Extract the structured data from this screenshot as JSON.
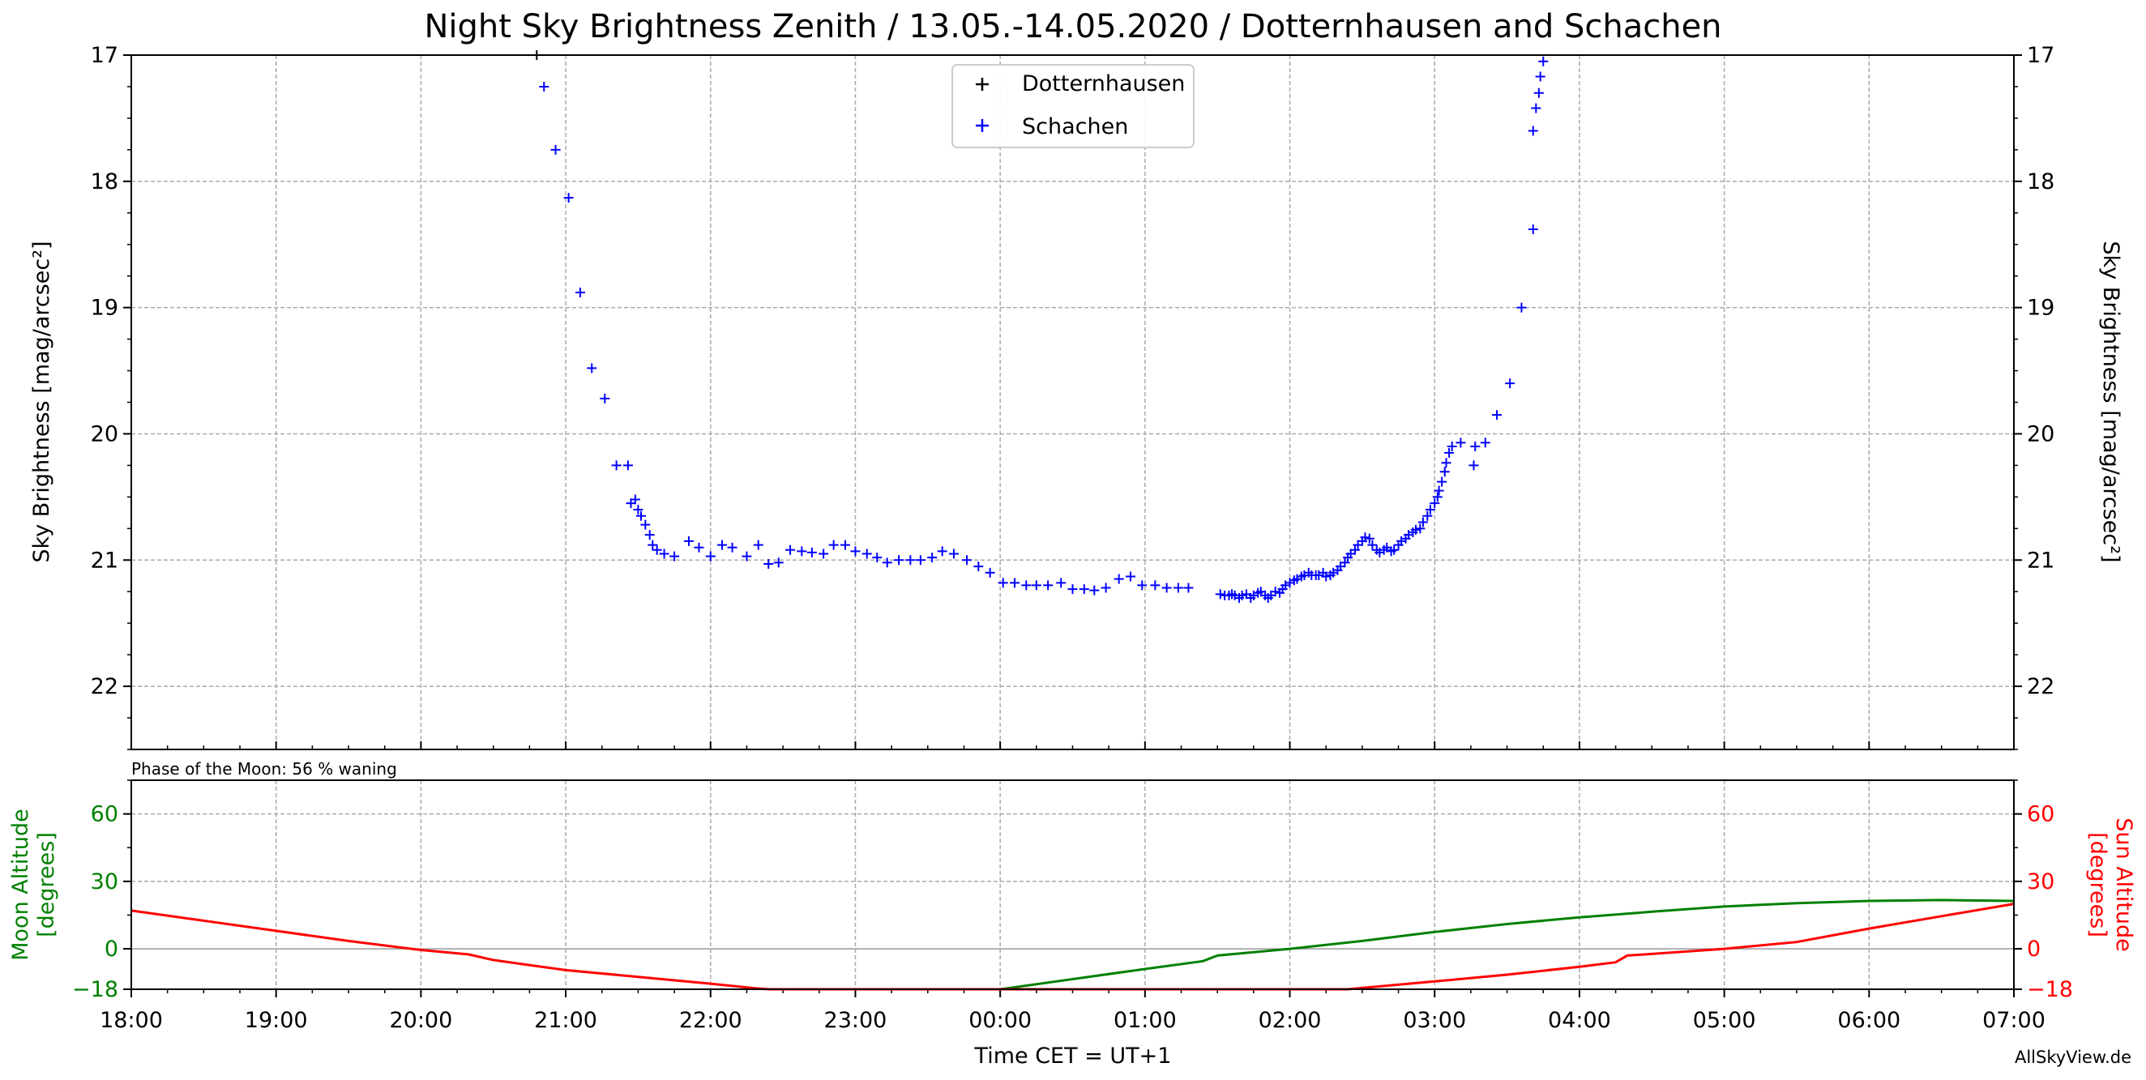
{
  "chart_data": [
    {
      "type": "scatter",
      "title": "Night Sky Brightness Zenith / 13.05.-14.05.2020 / Dotternhausen and Schachen",
      "ylabel": "Sky Brightness [mag/arcsec²]",
      "ylabel_right": "Sky Brightness [mag/arcsec²]",
      "y_inverted": true,
      "ylim": [
        17,
        22.5
      ],
      "yticks": [
        17,
        18,
        19,
        20,
        21,
        22
      ],
      "grid": true,
      "legend_position": "top-center",
      "series": [
        {
          "name": "Dotternhausen",
          "color": "#000000",
          "marker": "+",
          "points": [
            [
              20.8,
              17.0
            ]
          ]
        },
        {
          "name": "Schachen",
          "color": "#0000ff",
          "marker": "+",
          "points": [
            [
              20.85,
              17.25
            ],
            [
              20.93,
              17.75
            ],
            [
              21.02,
              18.13
            ],
            [
              21.1,
              18.88
            ],
            [
              21.18,
              19.48
            ],
            [
              21.27,
              19.72
            ],
            [
              21.35,
              20.25
            ],
            [
              21.43,
              20.25
            ],
            [
              21.45,
              20.55
            ],
            [
              21.48,
              20.52
            ],
            [
              21.5,
              20.6
            ],
            [
              21.52,
              20.65
            ],
            [
              21.55,
              20.72
            ],
            [
              21.58,
              20.8
            ],
            [
              21.6,
              20.88
            ],
            [
              21.63,
              20.92
            ],
            [
              21.68,
              20.95
            ],
            [
              21.75,
              20.97
            ],
            [
              21.85,
              20.85
            ],
            [
              21.92,
              20.9
            ],
            [
              22.0,
              20.97
            ],
            [
              22.08,
              20.88
            ],
            [
              22.15,
              20.9
            ],
            [
              22.25,
              20.97
            ],
            [
              22.33,
              20.88
            ],
            [
              22.4,
              21.03
            ],
            [
              22.47,
              21.02
            ],
            [
              22.55,
              20.92
            ],
            [
              22.63,
              20.93
            ],
            [
              22.7,
              20.94
            ],
            [
              22.78,
              20.95
            ],
            [
              22.85,
              20.88
            ],
            [
              22.93,
              20.88
            ],
            [
              23.0,
              20.93
            ],
            [
              23.08,
              20.95
            ],
            [
              23.15,
              20.98
            ],
            [
              23.22,
              21.02
            ],
            [
              23.3,
              21.0
            ],
            [
              23.38,
              21.0
            ],
            [
              23.45,
              21.0
            ],
            [
              23.53,
              20.98
            ],
            [
              23.6,
              20.93
            ],
            [
              23.68,
              20.95
            ],
            [
              23.77,
              21.0
            ],
            [
              23.85,
              21.05
            ],
            [
              23.93,
              21.1
            ],
            [
              24.02,
              21.18
            ],
            [
              24.1,
              21.18
            ],
            [
              24.18,
              21.2
            ],
            [
              24.25,
              21.2
            ],
            [
              24.33,
              21.2
            ],
            [
              24.42,
              21.18
            ],
            [
              24.5,
              21.23
            ],
            [
              24.58,
              21.23
            ],
            [
              24.65,
              21.24
            ],
            [
              24.73,
              21.22
            ],
            [
              24.82,
              21.15
            ],
            [
              24.9,
              21.13
            ],
            [
              24.98,
              21.2
            ],
            [
              25.07,
              21.2
            ],
            [
              25.15,
              21.22
            ],
            [
              25.23,
              21.22
            ],
            [
              25.3,
              21.22
            ],
            [
              25.52,
              21.27
            ],
            [
              25.55,
              21.28
            ],
            [
              25.58,
              21.28
            ],
            [
              25.6,
              21.27
            ],
            [
              25.62,
              21.28
            ],
            [
              25.65,
              21.3
            ],
            [
              25.67,
              21.28
            ],
            [
              25.7,
              21.27
            ],
            [
              25.73,
              21.3
            ],
            [
              25.75,
              21.28
            ],
            [
              25.78,
              21.26
            ],
            [
              25.8,
              21.25
            ],
            [
              25.83,
              21.28
            ],
            [
              25.85,
              21.3
            ],
            [
              25.87,
              21.28
            ],
            [
              25.9,
              21.25
            ],
            [
              25.93,
              21.26
            ],
            [
              25.95,
              21.23
            ],
            [
              25.97,
              21.2
            ],
            [
              26.0,
              21.18
            ],
            [
              26.03,
              21.16
            ],
            [
              26.05,
              21.15
            ],
            [
              26.08,
              21.13
            ],
            [
              26.1,
              21.12
            ],
            [
              26.13,
              21.1
            ],
            [
              26.15,
              21.12
            ],
            [
              26.18,
              21.12
            ],
            [
              26.2,
              21.12
            ],
            [
              26.23,
              21.1
            ],
            [
              26.25,
              21.13
            ],
            [
              26.28,
              21.12
            ],
            [
              26.3,
              21.1
            ],
            [
              26.33,
              21.08
            ],
            [
              26.35,
              21.05
            ],
            [
              26.38,
              21.02
            ],
            [
              26.4,
              20.98
            ],
            [
              26.42,
              20.95
            ],
            [
              26.45,
              20.92
            ],
            [
              26.47,
              20.88
            ],
            [
              26.5,
              20.85
            ],
            [
              26.52,
              20.82
            ],
            [
              26.55,
              20.83
            ],
            [
              26.57,
              20.88
            ],
            [
              26.6,
              20.92
            ],
            [
              26.62,
              20.94
            ],
            [
              26.65,
              20.92
            ],
            [
              26.67,
              20.9
            ],
            [
              26.7,
              20.93
            ],
            [
              26.72,
              20.92
            ],
            [
              26.75,
              20.88
            ],
            [
              26.77,
              20.85
            ],
            [
              26.8,
              20.83
            ],
            [
              26.82,
              20.8
            ],
            [
              26.85,
              20.78
            ],
            [
              26.87,
              20.76
            ],
            [
              26.9,
              20.75
            ],
            [
              26.92,
              20.7
            ],
            [
              26.95,
              20.65
            ],
            [
              26.97,
              20.6
            ],
            [
              27.0,
              20.55
            ],
            [
              27.02,
              20.5
            ],
            [
              27.03,
              20.45
            ],
            [
              27.05,
              20.38
            ],
            [
              27.07,
              20.3
            ],
            [
              27.08,
              20.23
            ],
            [
              27.1,
              20.15
            ],
            [
              27.12,
              20.1
            ],
            [
              27.18,
              20.07
            ],
            [
              27.27,
              20.25
            ],
            [
              27.28,
              20.1
            ],
            [
              27.35,
              20.07
            ],
            [
              27.43,
              19.85
            ],
            [
              27.52,
              19.6
            ],
            [
              27.6,
              19.0
            ],
            [
              27.68,
              18.38
            ],
            [
              27.68,
              17.6
            ],
            [
              27.7,
              17.42
            ],
            [
              27.72,
              17.3
            ],
            [
              27.73,
              17.17
            ],
            [
              27.75,
              17.05
            ]
          ]
        }
      ]
    },
    {
      "type": "line",
      "annotation": "Phase of the Moon: 56 % waning",
      "xlabel": "Time CET = UT+1",
      "xticklabels": [
        "18:00",
        "19:00",
        "20:00",
        "21:00",
        "22:00",
        "23:00",
        "00:00",
        "01:00",
        "02:00",
        "03:00",
        "04:00",
        "05:00",
        "06:00",
        "07:00"
      ],
      "xlim": [
        18,
        31
      ],
      "ylabel_left": "Moon Altitude [degrees]",
      "ylabel_right": "Sun Altitude [degrees]",
      "ylim": [
        -18,
        75
      ],
      "yticks": [
        -18,
        0,
        30,
        60
      ],
      "grid": true,
      "series": [
        {
          "name": "Moon Altitude",
          "color": "#008000",
          "points": [
            [
              24.0,
              -18
            ],
            [
              24.5,
              -13.5
            ],
            [
              25.0,
              -9
            ],
            [
              25.4,
              -5.5
            ],
            [
              25.5,
              -3
            ],
            [
              26.0,
              0
            ],
            [
              26.5,
              3.5
            ],
            [
              27.0,
              7.5
            ],
            [
              27.5,
              11
            ],
            [
              28.0,
              14
            ],
            [
              28.5,
              16.5
            ],
            [
              29.0,
              18.8
            ],
            [
              29.5,
              20.3
            ],
            [
              30.0,
              21.3
            ],
            [
              30.5,
              21.7
            ],
            [
              31.0,
              21.3
            ]
          ]
        },
        {
          "name": "Sun Altitude",
          "color": "#ff0000",
          "points": [
            [
              18.0,
              17
            ],
            [
              18.5,
              12.5
            ],
            [
              19.0,
              8
            ],
            [
              19.5,
              3.5
            ],
            [
              20.0,
              -0.5
            ],
            [
              20.33,
              -2.5
            ],
            [
              20.5,
              -5
            ],
            [
              21.0,
              -9.5
            ],
            [
              21.5,
              -12.5
            ],
            [
              22.0,
              -15.5
            ],
            [
              22.3,
              -17.5
            ],
            [
              22.4,
              -18
            ],
            [
              26.4,
              -18
            ],
            [
              27.0,
              -14.5
            ],
            [
              27.5,
              -11.5
            ],
            [
              28.0,
              -8
            ],
            [
              28.25,
              -6
            ],
            [
              28.33,
              -3
            ],
            [
              28.5,
              -2.3
            ],
            [
              29.0,
              0
            ],
            [
              29.5,
              3
            ],
            [
              30.0,
              9
            ],
            [
              30.5,
              14.5
            ],
            [
              31.0,
              20
            ]
          ]
        }
      ]
    }
  ],
  "credit": "AllSkyView.de",
  "colors": {
    "moon": "#008000",
    "sun": "#ff0000",
    "schachen": "#0000ff",
    "dotternhausen": "#000000"
  }
}
